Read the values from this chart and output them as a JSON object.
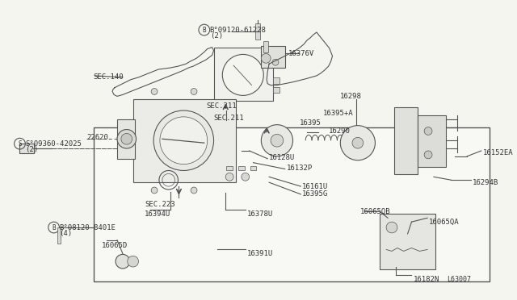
{
  "bg_color": "#f5f5f0",
  "line_color": "#555555",
  "text_color": "#333333",
  "labels": {
    "sec140": "SEC.140",
    "sec211_top": "SEC.211",
    "sec211_mid": "SEC.211",
    "sec223": "SEC.223",
    "b09120_6122b": "B°09120-61228",
    "b09120_6122b_sub": "(2)",
    "s09360_42025": "S°09360-42025",
    "s09360_42025_sub": "(2)",
    "b08120_8401e": "B°08120-8401E",
    "b08120_8401e_sub": "(4)",
    "p16376v": "16376V",
    "p16298": "16298",
    "p22620": "22620",
    "p16395": "16395",
    "p16395a": "16395+A",
    "p16290": "16290",
    "p16128u": "16128U",
    "p16132p": "16132P",
    "p16161u": "16161U",
    "p16395g": "16395G",
    "p16394u": "16394U",
    "p16378u": "16378U",
    "p16391u": "16391U",
    "p16065d": "16065D",
    "p16065qb": "16065QB",
    "p16065qa": "16065QA",
    "p16182n": "16182N",
    "p16152ea": "16152EA",
    "p16294b": "16294B",
    "diagram_no": "L63007"
  }
}
